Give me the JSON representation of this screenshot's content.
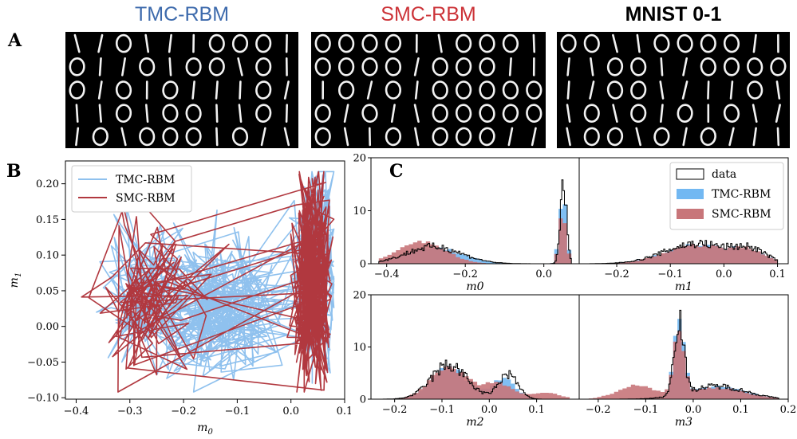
{
  "panels": {
    "a": "A",
    "b": "B",
    "c": "C"
  },
  "titles": {
    "tmc": "TMC-RBM",
    "smc": "SMC-RBM",
    "mnist": "MNIST 0-1",
    "tmc_color": "#3d6aac",
    "smc_color": "#cc3338",
    "mnist_color": "#000000"
  },
  "digit_grids": [
    {
      "name": "tmc",
      "rows": [
        "1101110001",
        "0110100101",
        "0101011101",
        "1101001101",
        "1010001011"
      ]
    },
    {
      "name": "smc",
      "rows": [
        "0000110001",
        "0000100011",
        "1010100000",
        "0101100000",
        "0110100011"
      ]
    },
    {
      "name": "mnist",
      "rows": [
        "0011000011",
        "1100110000",
        "1100111101",
        "1010101011",
        "1001010111"
      ]
    }
  ],
  "colors": {
    "tmc": "#8fc1ee",
    "smc": "#b1383f",
    "data": "#000000",
    "tmc_hist": "#72b8f2",
    "smc_hist": "#c8767a"
  },
  "chart_data": [
    {
      "type": "line",
      "panel": "B",
      "xlabel": "m_0",
      "ylabel": "m_1",
      "xlim": [
        -0.42,
        0.1
      ],
      "ylim": [
        -0.102,
        0.232
      ],
      "xticks": [
        -0.4,
        -0.3,
        -0.2,
        -0.1,
        0.0,
        0.1
      ],
      "xtick_labels": [
        "−0.4",
        "−0.3",
        "−0.2",
        "−0.1",
        "0.0",
        "0.1"
      ],
      "yticks": [
        -0.1,
        -0.05,
        0.0,
        0.05,
        0.1,
        0.15,
        0.2
      ],
      "ytick_labels": [
        "−0.10",
        "−0.05",
        "0.00",
        "0.05",
        "0.10",
        "0.15",
        "0.20"
      ],
      "legend": "top-left",
      "series": [
        {
          "name": "TMC-RBM",
          "color": "#8fc1ee",
          "clusters": [
            {
              "mx": -0.26,
              "sx": 0.05,
              "my": 0.04,
              "sy": 0.045
            },
            {
              "mx": -0.14,
              "sx": 0.06,
              "my": 0.03,
              "sy": 0.05
            },
            {
              "mx": 0.045,
              "sx": 0.02,
              "my": 0.07,
              "sy": 0.07
            }
          ]
        },
        {
          "name": "SMC-RBM",
          "color": "#b1383f",
          "clusters": [
            {
              "mx": -0.27,
              "sx": 0.045,
              "my": 0.04,
              "sy": 0.05
            },
            {
              "mx": 0.04,
              "sx": 0.018,
              "my": 0.06,
              "sy": 0.07
            }
          ]
        }
      ]
    },
    {
      "type": "histogram",
      "panel": "C",
      "legend": "top-right",
      "legend_entries": [
        "data",
        "TMC-RBM",
        "SMC-RBM"
      ],
      "subplots": [
        {
          "xlabel": "m0",
          "xlim": [
            -0.44,
            0.09
          ],
          "ylim": [
            0,
            20
          ],
          "xticks": [
            -0.4,
            -0.2,
            0.0
          ],
          "xtick_labels": [
            "−0.4",
            "−0.2",
            "0.0"
          ],
          "yticks": [
            0,
            10,
            20
          ],
          "ytick_labels": [
            "0",
            "10",
            "20"
          ],
          "data": [
            {
              "m": -0.28,
              "s": 0.07,
              "a": 3.2
            },
            {
              "m": 0.05,
              "s": 0.008,
              "a": 14.5
            }
          ],
          "tmc": [
            {
              "m": -0.28,
              "s": 0.07,
              "a": 3.0
            },
            {
              "m": 0.048,
              "s": 0.009,
              "a": 13.5
            }
          ],
          "smc": [
            {
              "m": -0.31,
              "s": 0.06,
              "a": 4.2
            },
            {
              "m": 0.048,
              "s": 0.009,
              "a": 10
            }
          ]
        },
        {
          "xlabel": "m1",
          "xlim": [
            -0.27,
            0.12
          ],
          "ylim": [
            0,
            20
          ],
          "xticks": [
            -0.2,
            -0.1,
            0.0,
            0.1
          ],
          "xtick_labels": [
            "−0.2",
            "−0.1",
            "0.0",
            "0.1"
          ],
          "yticks": [],
          "ytick_labels": [],
          "data": [
            {
              "m": -0.05,
              "s": 0.06,
              "a": 3.8
            },
            {
              "m": 0.05,
              "s": 0.03,
              "a": 2.2
            }
          ],
          "tmc": [
            {
              "m": -0.05,
              "s": 0.06,
              "a": 3.6
            },
            {
              "m": 0.05,
              "s": 0.03,
              "a": 2.0
            }
          ],
          "smc": [
            {
              "m": -0.05,
              "s": 0.06,
              "a": 3.5
            },
            {
              "m": 0.05,
              "s": 0.03,
              "a": 2.0
            }
          ]
        },
        {
          "xlabel": "m2",
          "xlim": [
            -0.25,
            0.19
          ],
          "ylim": [
            0,
            20
          ],
          "xticks": [
            -0.2,
            -0.1,
            0.0,
            0.1
          ],
          "xtick_labels": [
            "−0.2",
            "−0.1",
            "0.0",
            "0.1"
          ],
          "yticks": [
            0,
            10,
            20
          ],
          "ytick_labels": [
            "0",
            "10",
            "20"
          ],
          "data": [
            {
              "m": -0.085,
              "s": 0.038,
              "a": 6.5
            },
            {
              "m": 0.04,
              "s": 0.02,
              "a": 4.8
            }
          ],
          "tmc": [
            {
              "m": -0.085,
              "s": 0.038,
              "a": 6.0
            },
            {
              "m": 0.03,
              "s": 0.025,
              "a": 3.8
            }
          ],
          "smc": [
            {
              "m": -0.085,
              "s": 0.04,
              "a": 6.0
            },
            {
              "m": 0.02,
              "s": 0.03,
              "a": 3.0
            },
            {
              "m": 0.12,
              "s": 0.03,
              "a": 1.2
            }
          ]
        },
        {
          "xlabel": "m3",
          "xlim": [
            -0.24,
            0.2
          ],
          "ylim": [
            0,
            20
          ],
          "xticks": [
            -0.2,
            -0.1,
            0.0,
            0.1,
            0.2
          ],
          "xtick_labels": [
            "−0.2",
            "−0.1",
            "0.0",
            "0.1",
            "0.2"
          ],
          "yticks": [],
          "ytick_labels": [],
          "data": [
            {
              "m": -0.03,
              "s": 0.01,
              "a": 15
            },
            {
              "m": 0.05,
              "s": 0.06,
              "a": 2.5
            }
          ],
          "tmc": [
            {
              "m": -0.03,
              "s": 0.011,
              "a": 14
            },
            {
              "m": 0.05,
              "s": 0.06,
              "a": 2.4
            }
          ],
          "smc": [
            {
              "m": -0.03,
              "s": 0.011,
              "a": 12
            },
            {
              "m": -0.12,
              "s": 0.04,
              "a": 2.6
            },
            {
              "m": 0.05,
              "s": 0.06,
              "a": 2.2
            }
          ]
        }
      ]
    }
  ]
}
